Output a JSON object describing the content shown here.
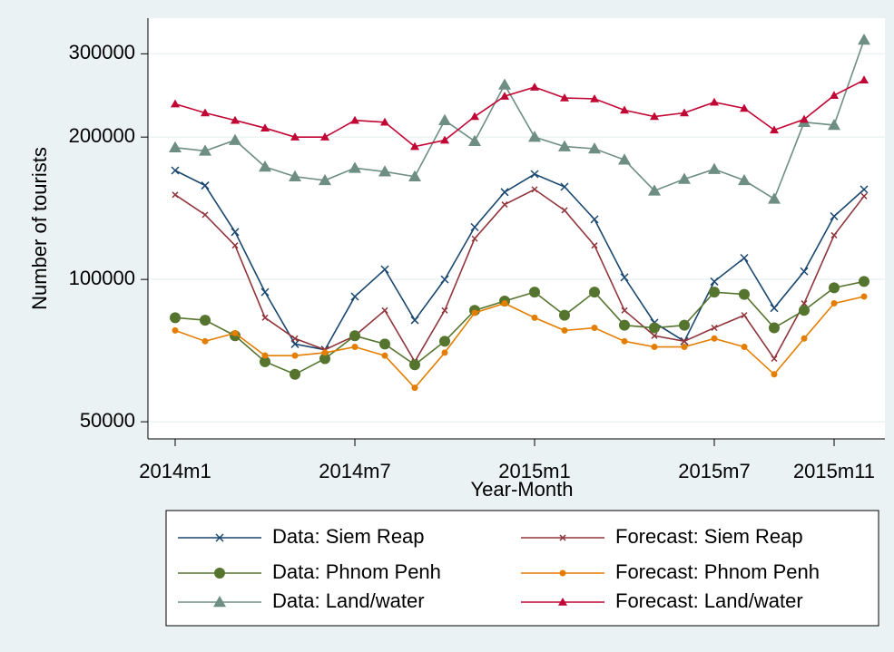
{
  "chart_data": {
    "type": "line",
    "y_label": "Number of tourists",
    "x_label": "Year-Month",
    "categories": [
      "2014m1",
      null,
      null,
      null,
      null,
      null,
      "2014m7",
      null,
      null,
      null,
      null,
      null,
      "2015m1",
      null,
      null,
      null,
      null,
      null,
      "2015m7",
      null,
      null,
      null,
      "2015m11",
      null
    ],
    "ylim": [
      46000,
      340000
    ],
    "yticks": [
      50000,
      100000,
      200000,
      300000
    ],
    "log_y": true,
    "grid": true,
    "series": [
      {
        "name": "Data: Siem Reap",
        "color": "#1a476f",
        "marker": "x",
        "values": [
          170000,
          158000,
          126000,
          94000,
          73000,
          71000,
          92000,
          105000,
          82000,
          100000,
          129000,
          153000,
          167000,
          157000,
          134000,
          101000,
          81000,
          74000,
          99000,
          111000,
          87000,
          104000,
          136000,
          155000
        ]
      },
      {
        "name": "Forecast: Siem Reap",
        "color": "#90353b",
        "marker": "x-small",
        "values": [
          151000,
          137000,
          118000,
          83000,
          75000,
          71000,
          76000,
          86000,
          67000,
          86000,
          122000,
          144000,
          155000,
          140000,
          118000,
          86000,
          76000,
          74000,
          79000,
          84000,
          68000,
          89000,
          124000,
          150000
        ]
      },
      {
        "name": "Data: Phnom Penh",
        "color": "#55752f",
        "marker": "circle",
        "values": [
          83000,
          82000,
          76000,
          67000,
          63000,
          68000,
          76000,
          73000,
          66000,
          74000,
          86000,
          90000,
          94000,
          84000,
          94000,
          80000,
          79000,
          80000,
          94000,
          93000,
          79000,
          86000,
          96000,
          99000
        ]
      },
      {
        "name": "Forecast: Phnom Penh",
        "color": "#e37e00",
        "marker": "circle-small",
        "values": [
          78000,
          74000,
          77000,
          69000,
          69000,
          70000,
          72000,
          69000,
          59000,
          70000,
          85000,
          89000,
          83000,
          78000,
          79000,
          74000,
          72000,
          72000,
          75000,
          72000,
          63000,
          75000,
          89000,
          92000
        ]
      },
      {
        "name": "Data: Land/water",
        "color": "#6e8e84",
        "marker": "triangle",
        "values": [
          190000,
          187000,
          197000,
          173000,
          165000,
          162000,
          172000,
          169000,
          165000,
          217000,
          196000,
          258000,
          200000,
          191000,
          189000,
          179000,
          154000,
          163000,
          171000,
          162000,
          148000,
          215000,
          212000,
          321000
        ]
      },
      {
        "name": "Forecast: Land/water",
        "color": "#c10534",
        "marker": "triangle-small",
        "values": [
          235000,
          225000,
          217000,
          209000,
          200000,
          200000,
          217000,
          215000,
          191000,
          197000,
          221000,
          244000,
          255000,
          242000,
          241000,
          228000,
          221000,
          225000,
          237000,
          230000,
          207000,
          218000,
          245000,
          264000
        ]
      }
    ]
  }
}
